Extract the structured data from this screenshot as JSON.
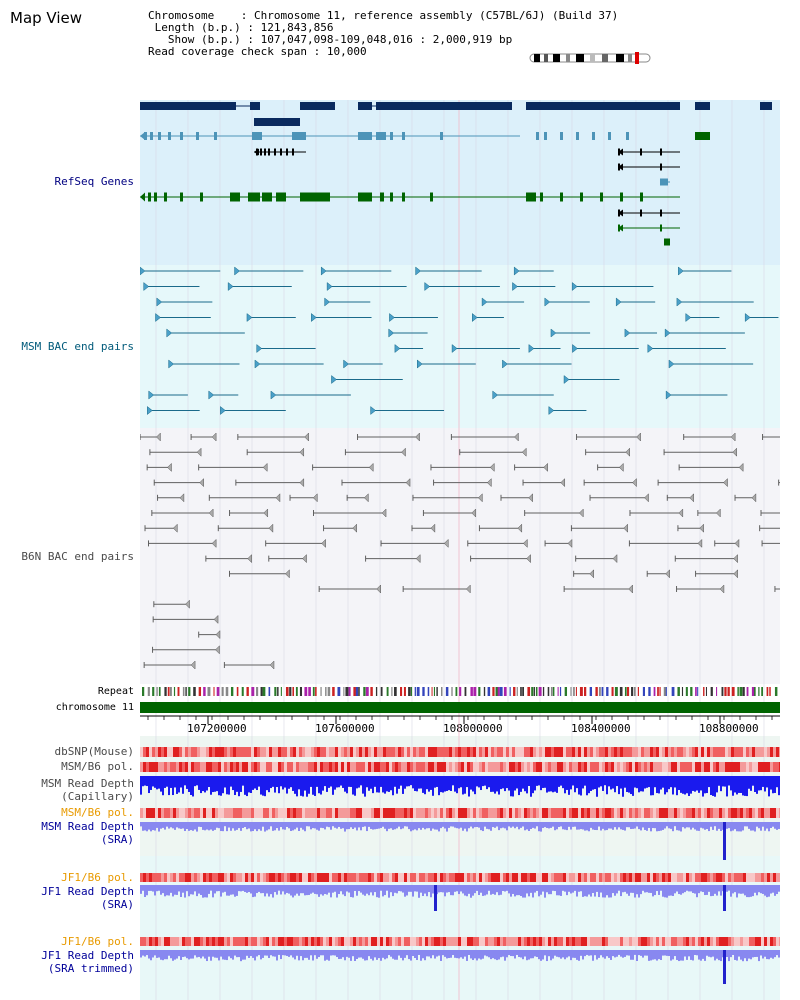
{
  "page": {
    "title": "Map View"
  },
  "info": {
    "chromosome_label": "Chromosome",
    "chromosome_value": "Chromosome 11, reference assembly (C57BL/6J) (Build 37)",
    "length_label": "Length (b.p.)",
    "length_value": "121,843,856",
    "show_label": "Show (b.p.)",
    "show_value": "107,047,098-109,048,016 : 2,000,919 bp",
    "coverage_label": "Read coverage check span",
    "coverage_value": "10,000"
  },
  "tracks": {
    "refseq": "RefSeq Genes",
    "msm_bac": "MSM BAC end pairs",
    "b6n_bac": "B6N BAC end pairs",
    "repeat": "Repeat",
    "chromosome": "chromosome 11",
    "dbsnp": "dbSNP(Mouse)",
    "msm_b6_pol_1": "MSM/B6 pol.",
    "msm_depth_cap_1": "MSM Read Depth",
    "msm_depth_cap_2": "(Capillary)",
    "msm_b6_pol_2": "MSM/B6 pol.",
    "msm_depth_sra_1": "MSM Read Depth",
    "msm_depth_sra_2": "(SRA)",
    "jf1_b6_pol_1": "JF1/B6 pol.",
    "jf1_depth_sra_1": "JF1 Read Depth",
    "jf1_depth_sra_2": "(SRA)",
    "jf1_b6_pol_2": "JF1/B6 pol.",
    "jf1_depth_trim_1": "JF1 Read Depth",
    "jf1_depth_trim_2": "(SRA trimmed)"
  },
  "axis": {
    "ticks": [
      "107200000",
      "107600000",
      "108000000",
      "108400000",
      "108800000"
    ]
  },
  "colors": {
    "refseq_bg": "#dcf0fa",
    "msm_bac_bg": "#e6f8fa",
    "b6n_bg": "#f4f4f8",
    "gene_dark": "#0a2a5e",
    "gene_mid": "#4d94b8",
    "gene_green": "#006400",
    "chrom_bar": "#006400",
    "depth_blue": "#1a1aee",
    "depth_light": "#8888f0",
    "snp_red": "#f07070"
  }
}
